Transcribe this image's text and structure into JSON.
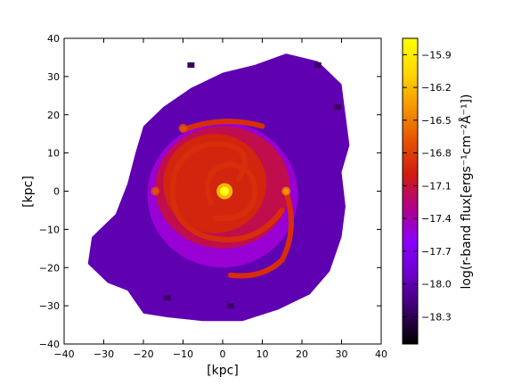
{
  "chart_data": {
    "type": "heatmap",
    "title": "",
    "xlabel": "[kpc]",
    "ylabel": "[kpc]",
    "xlim": [
      -40,
      40
    ],
    "ylim": [
      -40,
      40
    ],
    "xticks": [
      -40,
      -30,
      -20,
      -10,
      0,
      10,
      20,
      30,
      40
    ],
    "yticks": [
      -40,
      -30,
      -20,
      -10,
      0,
      10,
      20,
      30,
      40
    ],
    "grid": false,
    "colorbar": {
      "label": "log(r-band flux[ergs⁻¹cm⁻²Å⁻¹])",
      "range": [
        -18.55,
        -15.75
      ],
      "ticks": [
        -15.9,
        -16.2,
        -16.5,
        -16.8,
        -17.1,
        -17.4,
        -17.7,
        -18.0,
        -18.3
      ],
      "colormap": "gnuplot",
      "stops": [
        "#000000",
        "#3a0066",
        "#6a00c8",
        "#8a00ff",
        "#b0008a",
        "#d01c10",
        "#e65400",
        "#f59800",
        "#ffd800",
        "#ffff00"
      ]
    },
    "image": {
      "description_values": {
        "background_level": -18.0,
        "disk_level": -17.5,
        "arm_level": -16.9,
        "core_level": -15.8
      },
      "center": [
        0.5,
        0.0
      ],
      "bright_knots": [
        {
          "x": 0.5,
          "y": 0.0,
          "value": -15.8
        },
        {
          "x": 16.0,
          "y": 0.0,
          "value": -16.4
        },
        {
          "x": -17.0,
          "y": 0.0,
          "value": -16.7
        },
        {
          "x": -10.0,
          "y": 16.5,
          "value": -16.7
        }
      ]
    }
  }
}
